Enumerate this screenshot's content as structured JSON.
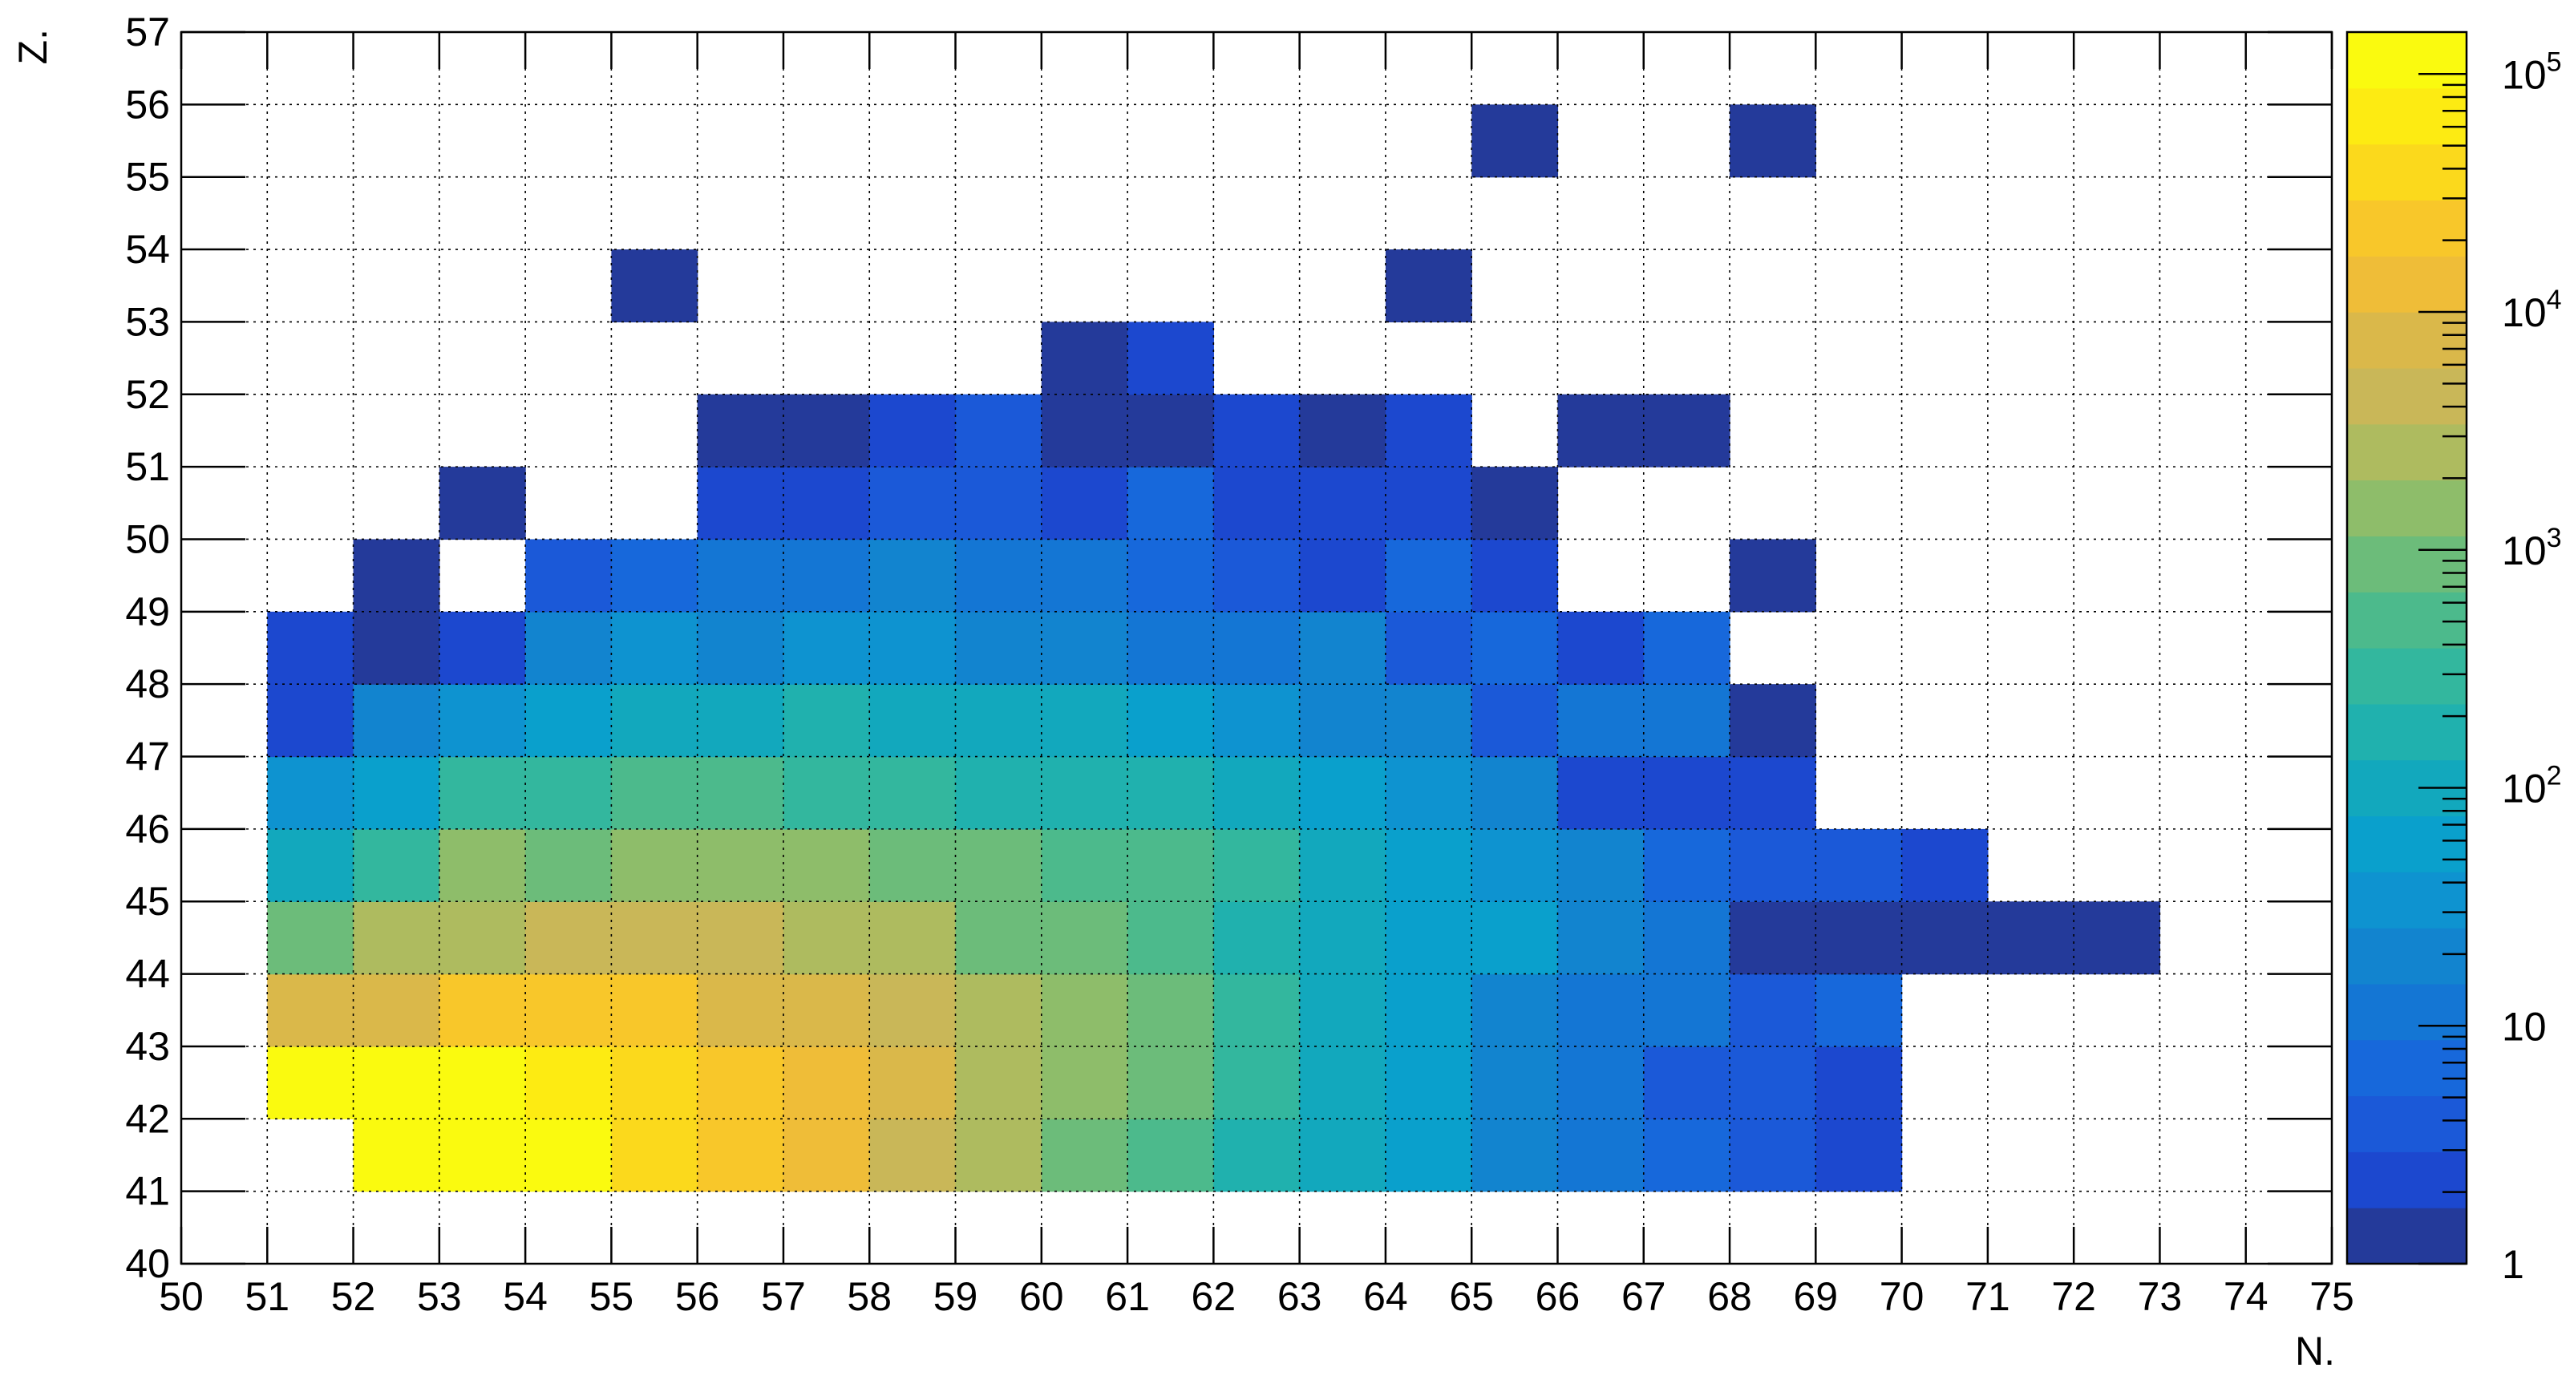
{
  "chart_data": {
    "type": "heatmap",
    "xlabel": "N.",
    "ylabel": "Z.",
    "xlim": [
      50,
      75
    ],
    "ylim": [
      40,
      57
    ],
    "x_ticks": [
      "50",
      "51",
      "52",
      "53",
      "54",
      "55",
      "56",
      "57",
      "58",
      "59",
      "60",
      "61",
      "62",
      "63",
      "64",
      "65",
      "66",
      "67",
      "68",
      "69",
      "70",
      "71",
      "72",
      "73",
      "74",
      "75"
    ],
    "y_ticks": [
      "40",
      "41",
      "42",
      "43",
      "44",
      "45",
      "46",
      "47",
      "48",
      "49",
      "50",
      "51",
      "52",
      "53",
      "54",
      "55",
      "56",
      "57"
    ],
    "grid": true,
    "color_scale": "log",
    "z_range": [
      1,
      150000
    ],
    "colorbar": {
      "position": "right",
      "tick_labels": [
        {
          "value": 1,
          "base": "1",
          "exp": ""
        },
        {
          "value": 10,
          "base": "10",
          "exp": ""
        },
        {
          "value": 100,
          "base": "10",
          "exp": "2"
        },
        {
          "value": 1000,
          "base": "10",
          "exp": "3"
        },
        {
          "value": 10000,
          "base": "10",
          "exp": "4"
        },
        {
          "value": 100000,
          "base": "10",
          "exp": "5"
        }
      ]
    },
    "palette": [
      "#243a9a",
      "#1c48cf",
      "#1b59d8",
      "#1768db",
      "#1476d4",
      "#1284cf",
      "#0e93d0",
      "#0aa0cc",
      "#12a8bd",
      "#20b1ae",
      "#33b79e",
      "#4cba8c",
      "#6cbc7a",
      "#8ebd6a",
      "#aebb5f",
      "#c9b758",
      "#dab84a",
      "#efbd38",
      "#f8c72a",
      "#fbd91c",
      "#fdeb12",
      "#fafa0f"
    ],
    "palette_levels": 22,
    "rows": [
      {
        "z": 41,
        "x0": 52,
        "values": [
          90000,
          100000,
          110000,
          50000,
          25000,
          12000,
          5000,
          2000,
          1000,
          500,
          180,
          100,
          70,
          25,
          10,
          6,
          4,
          2
        ]
      },
      {
        "z": 42,
        "x0": 51,
        "values": [
          110000,
          100000,
          100000,
          60000,
          50000,
          25000,
          12000,
          6000,
          3000,
          1300,
          700,
          250,
          120,
          70,
          25,
          12,
          5,
          3,
          2
        ]
      },
      {
        "z": 43,
        "x0": 51,
        "values": [
          6000,
          9000,
          18000,
          20000,
          18000,
          8000,
          6000,
          4000,
          2000,
          1200,
          700,
          300,
          130,
          60,
          22,
          15,
          11,
          3,
          8
        ]
      },
      {
        "z": 44,
        "x0": 51,
        "values": [
          1000,
          2000,
          3000,
          5000,
          5000,
          4000,
          2500,
          2000,
          1100,
          800,
          400,
          200,
          120,
          70,
          50,
          20,
          12,
          1,
          1,
          1,
          1,
          1
        ]
      },
      {
        "z": 45,
        "x0": 51,
        "values": [
          100,
          300,
          1200,
          1100,
          1600,
          1500,
          1300,
          900,
          800,
          600,
          400,
          250,
          120,
          70,
          40,
          20,
          7,
          4,
          3,
          2
        ]
      },
      {
        "z": 46,
        "x0": 51,
        "values": [
          40,
          70,
          250,
          350,
          500,
          400,
          300,
          250,
          200,
          200,
          150,
          90,
          60,
          40,
          20,
          2,
          2,
          2
        ]
      },
      {
        "z": 47,
        "x0": 51,
        "values": [
          2,
          20,
          40,
          70,
          100,
          100,
          160,
          100,
          80,
          80,
          60,
          30,
          25,
          20,
          5,
          10,
          10,
          1
        ]
      },
      {
        "z": 48,
        "x0": 51,
        "values": [
          2,
          1,
          2,
          20,
          35,
          25,
          30,
          40,
          25,
          20,
          10,
          12,
          18,
          3,
          8,
          2,
          6
        ]
      },
      {
        "z": 49,
        "x0": 52,
        "values": [
          1,
          0,
          5,
          8,
          15,
          12,
          20,
          15,
          10,
          7,
          3,
          2,
          7,
          2,
          0,
          0,
          1
        ]
      },
      {
        "z": 50,
        "x0": 53,
        "values": [
          1,
          0,
          0,
          2,
          2,
          4,
          3,
          2,
          7,
          2,
          2,
          2,
          1
        ]
      },
      {
        "z": 51,
        "x0": 56,
        "values": [
          1,
          1,
          2,
          4,
          1,
          1,
          2,
          1,
          2,
          0,
          1,
          1
        ]
      },
      {
        "z": 52,
        "x0": 60,
        "values": [
          1,
          2
        ]
      },
      {
        "z": 53,
        "x0": 55,
        "values": [
          1,
          0,
          0,
          0,
          0,
          0,
          0,
          0,
          0,
          1
        ]
      },
      {
        "z": 55,
        "x0": 65,
        "values": [
          1,
          0,
          0,
          1
        ]
      }
    ]
  }
}
